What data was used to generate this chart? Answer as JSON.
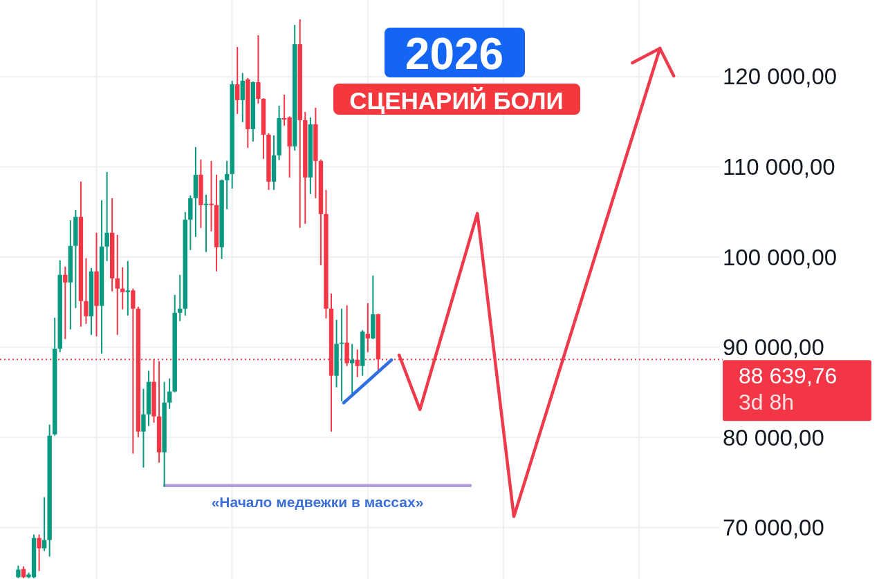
{
  "chart_data": {
    "type": "candlestick",
    "title": "2026",
    "subtitle": "СЦЕНАРИЙ БОЛИ",
    "categories": [
      null,
      null,
      null,
      null,
      null,
      null,
      null,
      null,
      null,
      null,
      null,
      null,
      null,
      null,
      null,
      null,
      null,
      null,
      null,
      null,
      null,
      null,
      null,
      null,
      null,
      null,
      null,
      null,
      null,
      null,
      null,
      null,
      null,
      null,
      null,
      null,
      null,
      null,
      null,
      null,
      null,
      null,
      null,
      null,
      null,
      null,
      null,
      null,
      null,
      null,
      null,
      null,
      null,
      null,
      null,
      null,
      null,
      null,
      null,
      null,
      null,
      null,
      null,
      null,
      null,
      null,
      null,
      null,
      null,
      null,
      null,
      null,
      null,
      null,
      null,
      null,
      null,
      null,
      null,
      null,
      null,
      null,
      null,
      null,
      null,
      null,
      null,
      null,
      null,
      null,
      null,
      null,
      null,
      null,
      null,
      null,
      null,
      null,
      null,
      null,
      null,
      null,
      null,
      null,
      null,
      null,
      null,
      null,
      null,
      null,
      null,
      null,
      null,
      null,
      null,
      null,
      null,
      null,
      null,
      null,
      null,
      null,
      null,
      null,
      null,
      null,
      null,
      null,
      null,
      null,
      null,
      null,
      null,
      null,
      null,
      null,
      null,
      null
    ],
    "ohlc": [
      null,
      null,
      null,
      [
        64500,
        65786,
        64400,
        65330
      ],
      [
        65406,
        65700,
        64400,
        64500
      ],
      [
        64500,
        65000,
        64400,
        64800
      ],
      [
        64500,
        69234,
        64400,
        68851
      ],
      [
        68851,
        69234,
        65176,
        67703
      ],
      [
        67703,
        73369,
        67397,
        68622
      ],
      [
        68622,
        81409,
        66784,
        80184
      ],
      [
        80337,
        93277,
        80184,
        89832
      ],
      [
        89832,
        99633,
        89449,
        98025
      ],
      [
        98025,
        98944,
        90904,
        97182
      ],
      [
        97182,
        104074,
        91976,
        101241
      ],
      [
        101241,
        105222,
        94349,
        104457
      ],
      [
        104457,
        108362,
        92282,
        95115
      ],
      [
        95115,
        99862,
        92588,
        93430
      ],
      [
        93430,
        98791,
        91363,
        98408
      ],
      [
        98408,
        102695,
        91210,
        94579
      ],
      [
        94579,
        106294,
        89296,
        101164
      ],
      [
        101164,
        109433,
        99556,
        102695
      ],
      [
        102695,
        106524,
        96187,
        97642
      ],
      [
        97642,
        102465,
        91363,
        96494
      ],
      [
        96494,
        98867,
        94196,
        96110
      ],
      [
        96110,
        99556,
        93507,
        96300
      ],
      [
        96300,
        96494,
        78193,
        94273
      ],
      [
        94273,
        94500,
        80031,
        80643
      ],
      [
        80643,
        85391,
        76662,
        82557
      ],
      [
        82557,
        87381,
        81256,
        86156
      ],
      [
        86156,
        88683,
        81639,
        82328
      ],
      [
        82328,
        88453,
        77198,
        78346
      ],
      [
        78346,
        86156,
        74518,
        83859
      ],
      [
        83859,
        86539,
        83170,
        85084
      ],
      [
        85084,
        95804,
        85000,
        93813
      ],
      [
        93813,
        98025,
        92895,
        94273
      ],
      [
        94273,
        104993,
        93507,
        104150
      ],
      [
        104150,
        106830,
        100781,
        106524
      ],
      [
        106524,
        112190,
        102236,
        109127
      ],
      [
        109127,
        110812,
        103232,
        105758
      ],
      [
        105758,
        106907,
        100552,
        105911
      ],
      [
        105911,
        110659,
        102848,
        105758
      ],
      [
        105758,
        109127,
        98408,
        101088
      ],
      [
        101088,
        108592,
        99786,
        108515
      ],
      [
        108515,
        110659,
        105299,
        109204
      ],
      [
        109204,
        119541,
        107596,
        119158
      ],
      [
        119158,
        123293,
        115866,
        117397
      ],
      [
        117397,
        120384,
        114947,
        119541
      ],
      [
        119694,
        119847,
        112113,
        114181
      ],
      [
        114181,
        119464,
        112803,
        119388
      ],
      [
        119388,
        124594,
        117014,
        117550
      ],
      [
        117550,
        117600,
        110889,
        113568
      ],
      [
        113568,
        113721,
        107443,
        108362
      ],
      [
        108362,
        113491,
        107443,
        111272
      ],
      [
        111272,
        116784,
        110735,
        115406
      ],
      [
        115406,
        118009,
        114564,
        115253
      ],
      [
        115483,
        115600,
        108821,
        112267
      ],
      [
        112267,
        125744,
        111807,
        123600
      ],
      [
        123600,
        126356,
        103232,
        115176
      ],
      [
        115176,
        116095,
        103691,
        108821
      ],
      [
        108821,
        115483,
        106983,
        114717
      ],
      [
        114717,
        116554,
        106524,
        110659
      ],
      [
        110659,
        110800,
        99097,
        104763
      ],
      [
        104763,
        107443,
        93201,
        94273
      ],
      [
        94273,
        95957,
        80643,
        86845
      ],
      [
        86845,
        93048,
        85544,
        90368
      ],
      [
        90368,
        94273,
        84012,
        90521
      ],
      [
        90521,
        94656,
        87917,
        88224
      ],
      [
        88224,
        90368,
        84778,
        88607
      ],
      [
        88607,
        89755,
        86692,
        87917
      ],
      [
        87917,
        91900,
        86845,
        91746
      ],
      [
        91500,
        94885,
        89449,
        90980
      ],
      [
        90980,
        97948,
        90900,
        93660
      ],
      [
        93660,
        93700,
        87458,
        88639.76
      ],
      null,
      null,
      null,
      null,
      null,
      null,
      null,
      null,
      null,
      null,
      null,
      null,
      null,
      null,
      null,
      null,
      null,
      null,
      null,
      null,
      null,
      null,
      null,
      null,
      null,
      null,
      null,
      null,
      null,
      null,
      null,
      null,
      null,
      null,
      null,
      null,
      null,
      null,
      null,
      null,
      null,
      null,
      null,
      null,
      null,
      null,
      null,
      null,
      null,
      null,
      null,
      null,
      null,
      null,
      null,
      null,
      null,
      null,
      null,
      null,
      null,
      null,
      null,
      null,
      null
    ],
    "series": [
      {
        "type": "line",
        "color": "#ef3a4c",
        "values": [
          null,
          null,
          null,
          null,
          null,
          null,
          null,
          null,
          null,
          null,
          null,
          null,
          null,
          null,
          null,
          null,
          null,
          null,
          null,
          null,
          null,
          null,
          null,
          null,
          null,
          null,
          null,
          null,
          null,
          null,
          null,
          null,
          null,
          null,
          null,
          null,
          null,
          null,
          null,
          null,
          null,
          null,
          null,
          null,
          null,
          null,
          null,
          null,
          null,
          null,
          null,
          null,
          null,
          null,
          null,
          null,
          null,
          null,
          null,
          null,
          null,
          null,
          null,
          null,
          null,
          null,
          null,
          null,
          null,
          null,
          null,
          null,
          null,
          null,
          null,
          null,
          89142,
          null,
          null,
          null,
          83093,
          null,
          null,
          null,
          null,
          null,
          null,
          null,
          null,
          null,
          null,
          104839,
          null,
          null,
          null,
          null,
          null,
          null,
          71225,
          null,
          null,
          null,
          null,
          null,
          null,
          null,
          null,
          null,
          null,
          null,
          null,
          null,
          null,
          null,
          null,
          null,
          null,
          null,
          null,
          null,
          null,
          null,
          null,
          null,
          null,
          null,
          123140,
          null,
          null,
          null,
          null,
          null,
          null,
          null,
          null,
          null,
          null,
          null
        ]
      }
    ],
    "ylim": [
      64300,
      128500
    ],
    "yticks": [
      {
        "value": 70000,
        "label": "70 000,00"
      },
      {
        "value": 80000,
        "label": "80 000,00"
      },
      {
        "value": 90000,
        "label": "90 000,00"
      },
      {
        "value": 100000,
        "label": "100 000,00"
      },
      {
        "value": 110000,
        "label": "110 000,00"
      },
      {
        "value": 120000,
        "label": "120 000,00"
      }
    ],
    "tick_labels": "y",
    "grid": true,
    "ref_lines": [
      {
        "axis": "y",
        "value": 88639.76,
        "label": "88 639,76",
        "color": "#f23645",
        "line_style": "dotted"
      },
      {
        "axis": "y",
        "value": 74671,
        "label": "«Начало медвежки в массах»",
        "color": "#b39ddb",
        "line_style": "solid"
      }
    ],
    "annotations": [
      "3d 8h"
    ]
  }
}
